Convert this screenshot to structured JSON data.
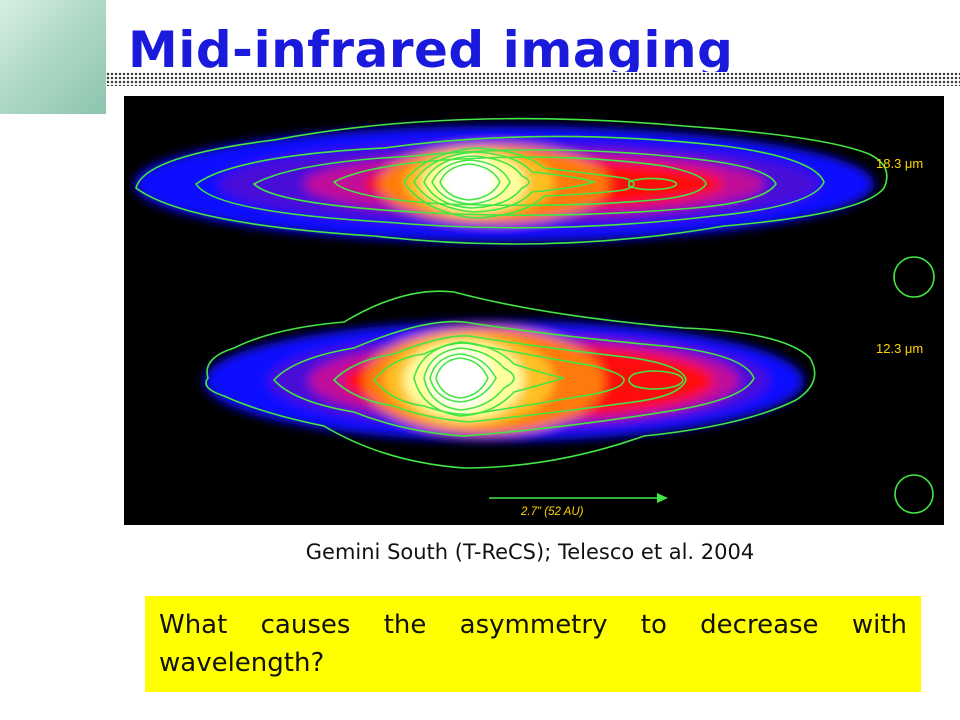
{
  "slide": {
    "title": "Mid-infrared imaging",
    "credit": "Gemini South (T-ReCS); Telesco et al. 2004",
    "question": "What causes the asymmetry to decrease with wavelength?"
  },
  "figure": {
    "labels": {
      "upper_wavelength": "18.3 μm",
      "lower_wavelength": "12.3 μm",
      "scale_bar": "2.7\" (52 AU)"
    },
    "colors": {
      "contour": "#44e644",
      "background": "#000000"
    },
    "heat_colors": [
      "#1010ff",
      "#4a10d8",
      "#c0109a",
      "#ff1010",
      "#ff7a10",
      "#ffc020",
      "#ffffa0",
      "#ffffff"
    ]
  },
  "theme": {
    "title_color": "#1a1adc",
    "highlight_color": "#ffff00",
    "corner_color": "#a9d6c3"
  }
}
